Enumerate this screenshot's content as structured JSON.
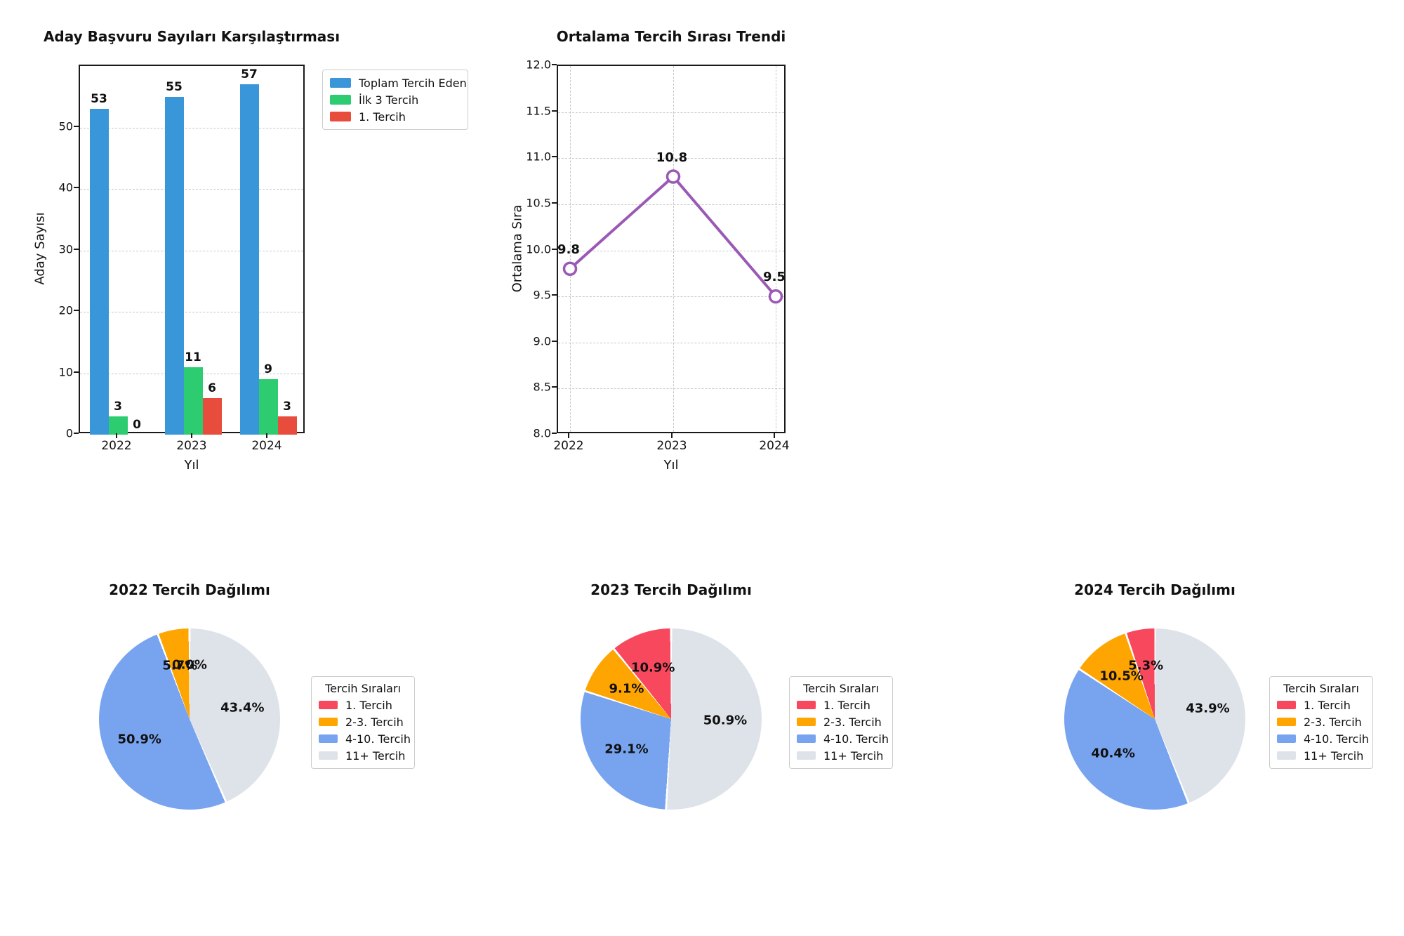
{
  "chart_data": [
    {
      "type": "bar",
      "title": "Aday Başvuru Sayıları Karşılaştırması",
      "xlabel": "Yıl",
      "ylabel": "Aday Sayısı",
      "categories": [
        "2022",
        "2023",
        "2024"
      ],
      "series": [
        {
          "name": "Toplam Tercih Eden",
          "color": "#3996d8",
          "values": [
            53,
            55,
            57
          ]
        },
        {
          "name": "İlk 3 Tercih",
          "color": "#2ecc71",
          "values": [
            3,
            11,
            9
          ]
        },
        {
          "name": "1. Tercih",
          "color": "#e74c3c",
          "values": [
            0,
            6,
            3
          ]
        }
      ],
      "yticks": [
        0,
        10,
        20,
        30,
        40,
        50
      ],
      "ylim": [
        0,
        60
      ],
      "grid": "horizontal-dashed",
      "legend_position": "outside-upper-right"
    },
    {
      "type": "line",
      "title": "Ortalama Tercih Sırası Trendi",
      "xlabel": "Yıl",
      "ylabel": "Ortalama Sıra",
      "x": [
        "2022",
        "2023",
        "2024"
      ],
      "values": [
        9.8,
        10.8,
        9.5
      ],
      "point_labels": [
        "9.8",
        "10.8",
        "9.5"
      ],
      "color": "#9b59b6",
      "marker": "open-circle",
      "ylim": [
        8.0,
        12.0
      ],
      "yticks": [
        8.0,
        8.5,
        9.0,
        9.5,
        10.0,
        10.5,
        11.0,
        11.5,
        12.0
      ],
      "ytick_labels": [
        "8.0",
        "8.5",
        "9.0",
        "9.5",
        "10.0",
        "10.5",
        "11.0",
        "11.5",
        "12.0"
      ],
      "grid": "both-dashed"
    },
    {
      "type": "pie",
      "title": "2022 Tercih Dağılımı",
      "legend_title": "Tercih Sıraları",
      "labels": [
        "1. Tercih",
        "2-3. Tercih",
        "4-10. Tercih",
        "11+ Tercih"
      ],
      "values": [
        0.0,
        5.7,
        50.9,
        43.4
      ],
      "pct_labels": [
        "0.0%",
        "5.7%",
        "50.9%",
        "43.4%"
      ],
      "colors": [
        "#f8485e",
        "#ffa502",
        "#78a4ef",
        "#dee3ea"
      ],
      "start_angle": 90,
      "direction": "counterclockwise"
    },
    {
      "type": "pie",
      "title": "2023 Tercih Dağılımı",
      "legend_title": "Tercih Sıraları",
      "labels": [
        "1. Tercih",
        "2-3. Tercih",
        "4-10. Tercih",
        "11+ Tercih"
      ],
      "values": [
        10.9,
        9.1,
        29.1,
        50.9
      ],
      "pct_labels": [
        "10.9%",
        "9.1%",
        "29.1%",
        "50.9%"
      ],
      "colors": [
        "#f8485e",
        "#ffa502",
        "#78a4ef",
        "#dee3ea"
      ],
      "start_angle": 90,
      "direction": "counterclockwise"
    },
    {
      "type": "pie",
      "title": "2024 Tercih Dağılımı",
      "legend_title": "Tercih Sıraları",
      "labels": [
        "1. Tercih",
        "2-3. Tercih",
        "4-10. Tercih",
        "11+ Tercih"
      ],
      "values": [
        5.3,
        10.5,
        40.4,
        43.9
      ],
      "pct_labels": [
        "5.3%",
        "10.5%",
        "40.4%",
        "43.9%"
      ],
      "colors": [
        "#f8485e",
        "#ffa502",
        "#78a4ef",
        "#dee3ea"
      ],
      "start_angle": 90,
      "direction": "counterclockwise"
    }
  ]
}
